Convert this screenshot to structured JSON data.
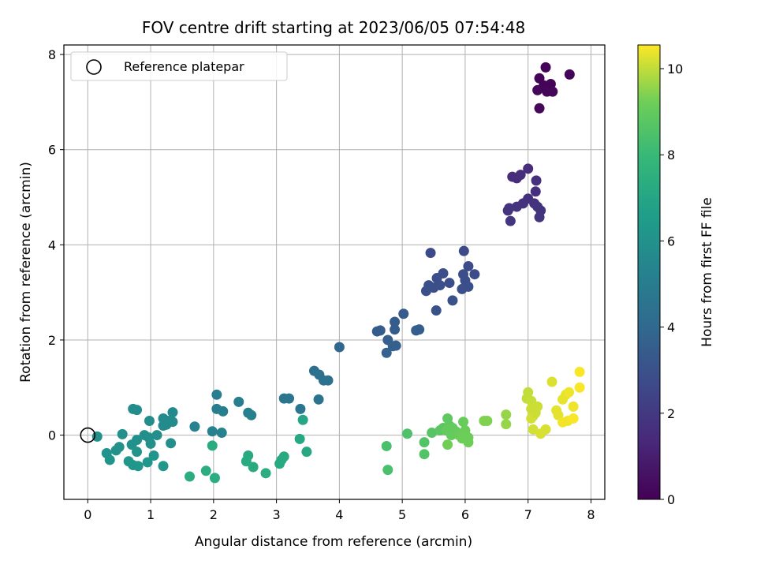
{
  "chart_data": {
    "type": "scatter",
    "title": "FOV centre drift starting at 2023/06/05 07:54:48",
    "xlabel": "Angular distance from reference (arcmin)",
    "ylabel": "Rotation from reference (arcmin)",
    "xlim": [
      -0.38,
      8.22
    ],
    "ylim": [
      -1.35,
      8.2
    ],
    "xticks": [
      0,
      1,
      2,
      3,
      4,
      5,
      6,
      7,
      8
    ],
    "yticks": [
      0,
      2,
      4,
      6,
      8
    ],
    "grid": true,
    "legend": {
      "placement": "top-left",
      "entries": [
        "Reference platepar"
      ]
    },
    "reference_point": {
      "x": 0,
      "y": 0
    },
    "colorbar": {
      "label": "Hours from first FF file",
      "colormap": "viridis",
      "range": [
        0,
        10.55
      ],
      "ticks": [
        0,
        2,
        4,
        6,
        8,
        10
      ]
    },
    "points": [
      {
        "x": 7.28,
        "y": 7.73,
        "c": 0.1
      },
      {
        "x": 7.18,
        "y": 7.5,
        "c": 0.1
      },
      {
        "x": 7.66,
        "y": 7.58,
        "c": 0.1
      },
      {
        "x": 7.25,
        "y": 7.35,
        "c": 0.15
      },
      {
        "x": 7.36,
        "y": 7.38,
        "c": 0.15
      },
      {
        "x": 7.15,
        "y": 7.25,
        "c": 0.2
      },
      {
        "x": 7.3,
        "y": 7.22,
        "c": 0.2
      },
      {
        "x": 7.39,
        "y": 7.22,
        "c": 0.2
      },
      {
        "x": 7.18,
        "y": 6.87,
        "c": 0.25
      },
      {
        "x": 7.0,
        "y": 5.6,
        "c": 1.5
      },
      {
        "x": 6.75,
        "y": 5.43,
        "c": 1.5
      },
      {
        "x": 6.88,
        "y": 5.47,
        "c": 1.5
      },
      {
        "x": 6.82,
        "y": 5.4,
        "c": 1.55
      },
      {
        "x": 7.13,
        "y": 5.35,
        "c": 1.6
      },
      {
        "x": 7.12,
        "y": 5.12,
        "c": 1.6
      },
      {
        "x": 7.0,
        "y": 4.97,
        "c": 1.65
      },
      {
        "x": 6.92,
        "y": 4.87,
        "c": 1.7
      },
      {
        "x": 7.1,
        "y": 4.87,
        "c": 1.7
      },
      {
        "x": 6.82,
        "y": 4.8,
        "c": 1.75
      },
      {
        "x": 6.7,
        "y": 4.77,
        "c": 1.75
      },
      {
        "x": 6.68,
        "y": 4.72,
        "c": 1.8
      },
      {
        "x": 7.15,
        "y": 4.8,
        "c": 1.8
      },
      {
        "x": 7.2,
        "y": 4.72,
        "c": 1.8
      },
      {
        "x": 7.18,
        "y": 4.58,
        "c": 1.85
      },
      {
        "x": 6.72,
        "y": 4.5,
        "c": 1.85
      },
      {
        "x": 5.98,
        "y": 3.87,
        "c": 2.7
      },
      {
        "x": 5.45,
        "y": 3.83,
        "c": 2.7
      },
      {
        "x": 6.05,
        "y": 3.55,
        "c": 2.75
      },
      {
        "x": 6.15,
        "y": 3.38,
        "c": 2.75
      },
      {
        "x": 5.97,
        "y": 3.38,
        "c": 2.8
      },
      {
        "x": 5.65,
        "y": 3.4,
        "c": 2.8
      },
      {
        "x": 5.55,
        "y": 3.3,
        "c": 2.8
      },
      {
        "x": 6.0,
        "y": 3.25,
        "c": 2.85
      },
      {
        "x": 5.75,
        "y": 3.2,
        "c": 2.85
      },
      {
        "x": 5.42,
        "y": 3.15,
        "c": 2.9
      },
      {
        "x": 5.6,
        "y": 3.15,
        "c": 2.9
      },
      {
        "x": 5.5,
        "y": 3.1,
        "c": 2.9
      },
      {
        "x": 6.05,
        "y": 3.12,
        "c": 2.9
      },
      {
        "x": 5.95,
        "y": 3.07,
        "c": 2.95
      },
      {
        "x": 5.38,
        "y": 3.03,
        "c": 2.95
      },
      {
        "x": 5.8,
        "y": 2.83,
        "c": 3.0
      },
      {
        "x": 5.54,
        "y": 2.62,
        "c": 3.0
      },
      {
        "x": 5.02,
        "y": 2.55,
        "c": 3.4
      },
      {
        "x": 4.88,
        "y": 2.38,
        "c": 3.45
      },
      {
        "x": 4.65,
        "y": 2.2,
        "c": 3.5
      },
      {
        "x": 4.6,
        "y": 2.18,
        "c": 3.5
      },
      {
        "x": 4.88,
        "y": 2.22,
        "c": 3.5
      },
      {
        "x": 5.22,
        "y": 2.2,
        "c": 3.55
      },
      {
        "x": 5.27,
        "y": 2.22,
        "c": 3.55
      },
      {
        "x": 4.77,
        "y": 2.0,
        "c": 3.6
      },
      {
        "x": 4.85,
        "y": 1.87,
        "c": 3.6
      },
      {
        "x": 4.9,
        "y": 1.88,
        "c": 3.6
      },
      {
        "x": 4.75,
        "y": 1.73,
        "c": 3.65
      },
      {
        "x": 4.0,
        "y": 1.85,
        "c": 4.0
      },
      {
        "x": 3.6,
        "y": 1.35,
        "c": 4.3
      },
      {
        "x": 3.68,
        "y": 1.27,
        "c": 4.35
      },
      {
        "x": 3.75,
        "y": 1.15,
        "c": 4.4
      },
      {
        "x": 3.82,
        "y": 1.15,
        "c": 4.4
      },
      {
        "x": 3.67,
        "y": 0.75,
        "c": 4.5
      },
      {
        "x": 3.12,
        "y": 0.77,
        "c": 4.6
      },
      {
        "x": 3.2,
        "y": 0.77,
        "c": 4.6
      },
      {
        "x": 3.38,
        "y": 0.55,
        "c": 4.65
      },
      {
        "x": 2.05,
        "y": 0.85,
        "c": 5.0
      },
      {
        "x": 2.4,
        "y": 0.7,
        "c": 5.05
      },
      {
        "x": 2.05,
        "y": 0.55,
        "c": 5.1
      },
      {
        "x": 2.15,
        "y": 0.5,
        "c": 5.1
      },
      {
        "x": 2.55,
        "y": 0.47,
        "c": 5.1
      },
      {
        "x": 2.6,
        "y": 0.42,
        "c": 5.15
      },
      {
        "x": 1.7,
        "y": 0.18,
        "c": 5.2
      },
      {
        "x": 1.98,
        "y": 0.08,
        "c": 5.25
      },
      {
        "x": 2.13,
        "y": 0.05,
        "c": 5.25
      },
      {
        "x": 1.35,
        "y": 0.48,
        "c": 5.6
      },
      {
        "x": 1.2,
        "y": 0.35,
        "c": 5.65
      },
      {
        "x": 1.27,
        "y": 0.3,
        "c": 5.65
      },
      {
        "x": 1.35,
        "y": 0.28,
        "c": 5.7
      },
      {
        "x": 1.2,
        "y": 0.2,
        "c": 5.7
      },
      {
        "x": 1.25,
        "y": 0.22,
        "c": 5.7
      },
      {
        "x": 0.72,
        "y": 0.55,
        "c": 5.75
      },
      {
        "x": 0.78,
        "y": 0.53,
        "c": 5.75
      },
      {
        "x": 0.98,
        "y": 0.3,
        "c": 5.8
      },
      {
        "x": 1.1,
        "y": 0.0,
        "c": 5.85
      },
      {
        "x": 1.32,
        "y": -0.17,
        "c": 5.9
      },
      {
        "x": 0.9,
        "y": 0.0,
        "c": 5.9
      },
      {
        "x": 0.97,
        "y": -0.05,
        "c": 5.9
      },
      {
        "x": 1.0,
        "y": -0.18,
        "c": 5.95
      },
      {
        "x": 0.55,
        "y": 0.02,
        "c": 5.95
      },
      {
        "x": 0.15,
        "y": -0.03,
        "c": 6.0
      },
      {
        "x": 0.78,
        "y": -0.1,
        "c": 6.0
      },
      {
        "x": 0.7,
        "y": -0.2,
        "c": 6.0
      },
      {
        "x": 0.5,
        "y": -0.25,
        "c": 6.05
      },
      {
        "x": 0.45,
        "y": -0.32,
        "c": 6.05
      },
      {
        "x": 0.3,
        "y": -0.38,
        "c": 6.1
      },
      {
        "x": 0.78,
        "y": -0.35,
        "c": 6.1
      },
      {
        "x": 1.05,
        "y": -0.43,
        "c": 6.15
      },
      {
        "x": 0.35,
        "y": -0.52,
        "c": 6.15
      },
      {
        "x": 0.65,
        "y": -0.55,
        "c": 6.2
      },
      {
        "x": 0.95,
        "y": -0.57,
        "c": 6.2
      },
      {
        "x": 0.72,
        "y": -0.63,
        "c": 6.2
      },
      {
        "x": 0.8,
        "y": -0.65,
        "c": 6.25
      },
      {
        "x": 1.2,
        "y": -0.65,
        "c": 6.25
      },
      {
        "x": 3.42,
        "y": 0.32,
        "c": 7.0
      },
      {
        "x": 3.37,
        "y": -0.08,
        "c": 7.05
      },
      {
        "x": 3.48,
        "y": -0.35,
        "c": 7.1
      },
      {
        "x": 3.12,
        "y": -0.45,
        "c": 7.15
      },
      {
        "x": 3.08,
        "y": -0.52,
        "c": 7.15
      },
      {
        "x": 3.05,
        "y": -0.6,
        "c": 7.2
      },
      {
        "x": 2.55,
        "y": -0.43,
        "c": 7.2
      },
      {
        "x": 2.52,
        "y": -0.55,
        "c": 7.25
      },
      {
        "x": 2.63,
        "y": -0.67,
        "c": 7.25
      },
      {
        "x": 1.98,
        "y": -0.22,
        "c": 7.3
      },
      {
        "x": 1.88,
        "y": -0.75,
        "c": 7.35
      },
      {
        "x": 2.83,
        "y": -0.8,
        "c": 7.35
      },
      {
        "x": 1.62,
        "y": -0.87,
        "c": 7.4
      },
      {
        "x": 2.02,
        "y": -0.9,
        "c": 7.4
      },
      {
        "x": 4.75,
        "y": -0.23,
        "c": 8.4
      },
      {
        "x": 4.77,
        "y": -0.73,
        "c": 8.4
      },
      {
        "x": 5.08,
        "y": 0.03,
        "c": 8.5
      },
      {
        "x": 5.35,
        "y": -0.15,
        "c": 8.6
      },
      {
        "x": 5.35,
        "y": -0.4,
        "c": 8.6
      },
      {
        "x": 5.47,
        "y": 0.05,
        "c": 8.7
      },
      {
        "x": 5.6,
        "y": 0.1,
        "c": 8.8
      },
      {
        "x": 5.65,
        "y": 0.15,
        "c": 8.8
      },
      {
        "x": 5.72,
        "y": 0.35,
        "c": 8.9
      },
      {
        "x": 5.75,
        "y": 0.2,
        "c": 8.9
      },
      {
        "x": 5.7,
        "y": 0.1,
        "c": 9.0
      },
      {
        "x": 5.8,
        "y": 0.15,
        "c": 9.0
      },
      {
        "x": 5.85,
        "y": 0.08,
        "c": 9.0
      },
      {
        "x": 5.78,
        "y": 0.0,
        "c": 9.05
      },
      {
        "x": 5.9,
        "y": 0.0,
        "c": 9.1
      },
      {
        "x": 5.97,
        "y": 0.28,
        "c": 9.1
      },
      {
        "x": 6.0,
        "y": 0.1,
        "c": 9.15
      },
      {
        "x": 5.95,
        "y": -0.07,
        "c": 9.2
      },
      {
        "x": 6.05,
        "y": -0.05,
        "c": 9.2
      },
      {
        "x": 6.05,
        "y": -0.15,
        "c": 9.2
      },
      {
        "x": 5.72,
        "y": -0.2,
        "c": 9.25
      },
      {
        "x": 6.35,
        "y": 0.3,
        "c": 9.4
      },
      {
        "x": 6.3,
        "y": 0.3,
        "c": 9.4
      },
      {
        "x": 6.65,
        "y": 0.43,
        "c": 9.6
      },
      {
        "x": 6.65,
        "y": 0.23,
        "c": 9.6
      },
      {
        "x": 7.0,
        "y": 0.9,
        "c": 10.0
      },
      {
        "x": 6.98,
        "y": 0.77,
        "c": 10.0
      },
      {
        "x": 7.05,
        "y": 0.72,
        "c": 10.05
      },
      {
        "x": 7.15,
        "y": 0.6,
        "c": 10.1
      },
      {
        "x": 7.08,
        "y": 0.4,
        "c": 10.1
      },
      {
        "x": 7.05,
        "y": 0.35,
        "c": 10.15
      },
      {
        "x": 7.08,
        "y": 0.12,
        "c": 10.15
      },
      {
        "x": 7.2,
        "y": 0.03,
        "c": 10.2
      },
      {
        "x": 7.28,
        "y": 0.12,
        "c": 10.2
      },
      {
        "x": 7.38,
        "y": 1.12,
        "c": 10.25
      },
      {
        "x": 7.45,
        "y": 0.52,
        "c": 10.3
      },
      {
        "x": 7.48,
        "y": 0.42,
        "c": 10.3
      },
      {
        "x": 7.55,
        "y": 0.75,
        "c": 10.35
      },
      {
        "x": 7.6,
        "y": 0.85,
        "c": 10.35
      },
      {
        "x": 7.65,
        "y": 0.9,
        "c": 10.4
      },
      {
        "x": 7.72,
        "y": 0.6,
        "c": 10.4
      },
      {
        "x": 7.55,
        "y": 0.27,
        "c": 10.45
      },
      {
        "x": 7.63,
        "y": 0.3,
        "c": 10.45
      },
      {
        "x": 7.72,
        "y": 0.35,
        "c": 10.5
      },
      {
        "x": 7.82,
        "y": 1.33,
        "c": 10.5
      },
      {
        "x": 7.82,
        "y": 1.0,
        "c": 10.5
      },
      {
        "x": 7.05,
        "y": 0.55,
        "c": 10.1
      },
      {
        "x": 7.12,
        "y": 0.47,
        "c": 10.1
      }
    ]
  }
}
